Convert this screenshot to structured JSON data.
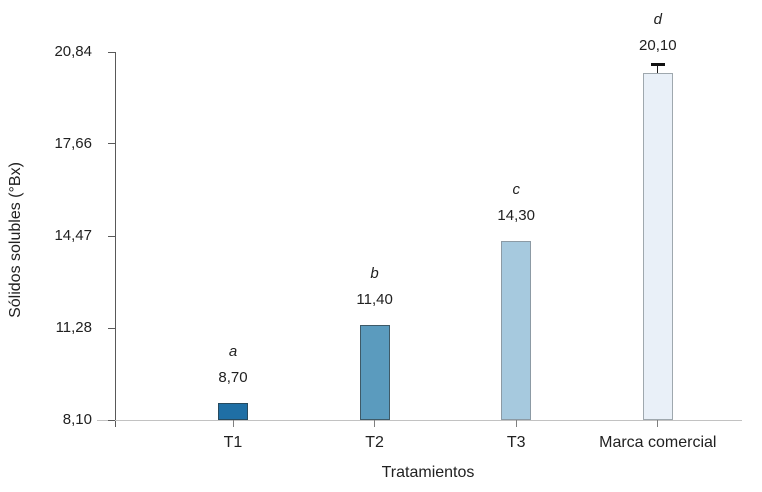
{
  "chart_data": {
    "type": "bar",
    "title": "",
    "xlabel": "Tratamientos",
    "ylabel": "Sólidos solubles (°Bx)",
    "categories": [
      "T1",
      "T2",
      "T3",
      "Marca comercial"
    ],
    "values": [
      8.7,
      11.4,
      14.3,
      20.1
    ],
    "value_labels": [
      "8,70",
      "11,40",
      "14,30",
      "20,10"
    ],
    "letter_labels": [
      "a",
      "b",
      "c",
      "d"
    ],
    "error_bars": [
      0,
      0,
      0,
      0.3
    ],
    "bar_colors": [
      "#1f6fa5",
      "#5b9bbe",
      "#a6c9de",
      "#e9f0f8"
    ],
    "bar_border_colors": [
      "#274a5e",
      "#3e5a68",
      "#8c9aa4",
      "#9fa8ae"
    ],
    "ylim": [
      8.1,
      20.84
    ],
    "yticks": [
      8.1,
      11.28,
      14.47,
      17.66,
      20.84
    ],
    "ytick_labels": [
      "8,10",
      "11,28",
      "14,47",
      "17,66",
      "20,84"
    ],
    "grid": false,
    "legend": false,
    "axis_colors": {
      "y_axis": "#595959",
      "x_axis": "#c2c2c2"
    },
    "text_color": "#212121"
  }
}
